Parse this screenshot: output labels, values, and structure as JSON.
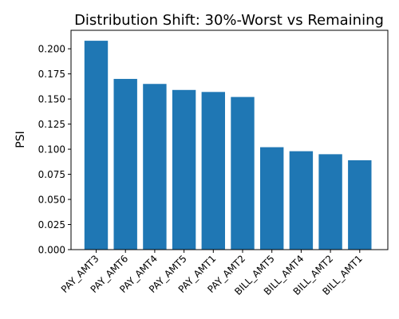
{
  "chart_data": {
    "type": "bar",
    "title": "Distribution Shift: 30%-Worst vs Remaining",
    "xlabel": "",
    "ylabel": "PSI",
    "categories": [
      "PAY_AMT3",
      "PAY_AMT6",
      "PAY_AMT4",
      "PAY_AMT5",
      "PAY_AMT1",
      "PAY_AMT2",
      "BILL_AMT5",
      "BILL_AMT4",
      "BILL_AMT2",
      "BILL_AMT1"
    ],
    "values": [
      0.208,
      0.17,
      0.165,
      0.159,
      0.157,
      0.152,
      0.102,
      0.098,
      0.095,
      0.089
    ],
    "ylim": [
      0,
      0.2184
    ],
    "yticks": [
      0.0,
      0.025,
      0.05,
      0.075,
      0.1,
      0.125,
      0.15,
      0.175,
      0.2
    ],
    "ytick_labels": [
      "0.000",
      "0.025",
      "0.050",
      "0.075",
      "0.100",
      "0.125",
      "0.150",
      "0.175",
      "0.200"
    ],
    "bar_color": "#1f77b4",
    "grid": false,
    "legend": "none"
  }
}
